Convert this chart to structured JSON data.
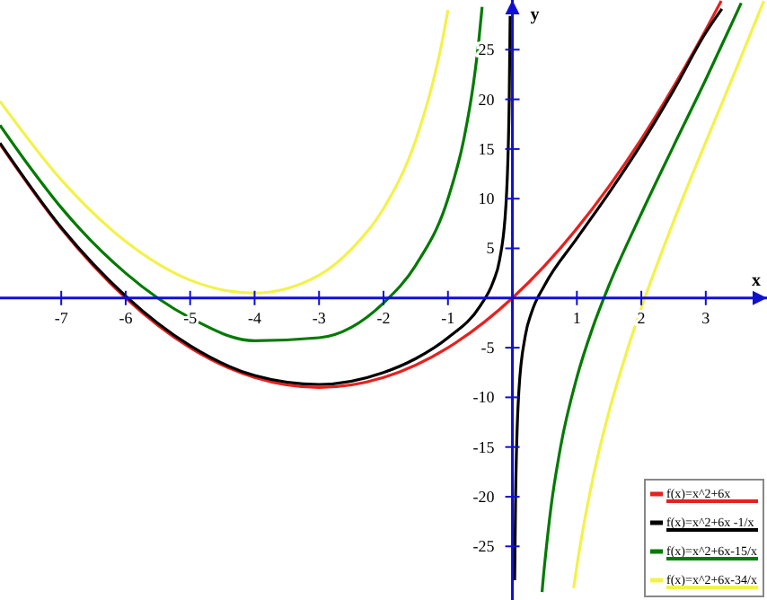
{
  "chart_data": {
    "type": "line",
    "xlabel": "x",
    "ylabel": "y",
    "xlim": [
      -7.95,
      3.95
    ],
    "ylim": [
      -30.4,
      30
    ],
    "xticks": [
      -7,
      -6,
      -5,
      -4,
      -3,
      -2,
      -1,
      1,
      2,
      3
    ],
    "yticks": [
      -25,
      -20,
      -15,
      -10,
      -5,
      5,
      10,
      15,
      20,
      25
    ],
    "grid": false,
    "legend": "bottom right",
    "marker": "none",
    "line_style": "solid",
    "series": [
      {
        "name": "f(x)=x^2+6x",
        "color": "#e8201e",
        "x": [
          -7.95,
          -7,
          -6,
          -5,
          -4,
          -3,
          -2,
          -1,
          0,
          1,
          2,
          3,
          3.24
        ],
        "values": [
          15.5,
          7,
          0,
          -5,
          -8,
          -9,
          -8,
          -5,
          0,
          7,
          16,
          27,
          29.9
        ]
      },
      {
        "name": "f(x)=x^2+6x -1/x",
        "color": "#000000",
        "x": [
          -7.95,
          -7,
          -6,
          -5,
          -4,
          -3,
          -2,
          -1.5,
          -1,
          -0.5,
          -0.3,
          -0.2,
          -0.1,
          -0.05,
          -0.035,
          0,
          0.035,
          0.05,
          0.1,
          0.2,
          0.3,
          0.5,
          1,
          1.5,
          2,
          2.5,
          3,
          3.25
        ],
        "values": [
          15.6,
          7.1,
          0.2,
          -4.8,
          -7.8,
          -8.7,
          -7.5,
          -6.1,
          -4,
          -0.8,
          1.6,
          3.8,
          9.4,
          19.7,
          28.4,
          null,
          -28.4,
          -19.7,
          -9.4,
          -3.8,
          -1.4,
          1.3,
          6,
          10.6,
          15.5,
          20.9,
          26.7,
          29.1
        ]
      },
      {
        "name": "f(x)=x^2+6x-15/x",
        "color": "#007a00",
        "x": [
          -7.95,
          -7.5,
          -7,
          -6,
          -5,
          -4,
          -3,
          -2,
          -1.5,
          -1,
          -0.75,
          -0.6,
          -0.52,
          -0.47,
          0,
          0.46,
          0.48,
          0.5,
          0.6,
          0.75,
          1,
          1.25,
          1.5,
          2,
          2.5,
          3,
          3.5,
          3.55
        ],
        "values": [
          17.4,
          13.3,
          9.1,
          2.5,
          -2,
          -4.3,
          -4,
          -0.5,
          3.3,
          10,
          16.1,
          21.8,
          26,
          29.3,
          null,
          -29.6,
          -28.1,
          -26.8,
          -21,
          -14.9,
          -8,
          -2.9,
          1.3,
          8.5,
          15.3,
          22,
          29,
          29.7
        ]
      },
      {
        "name": "f(x)=x^2+6x-34/x",
        "color": "#f2f24a",
        "x": [
          -7.95,
          -7,
          -6,
          -5,
          -4,
          -3,
          -2.5,
          -2,
          -1.5,
          -1.25,
          -1.1,
          -1,
          0,
          0.95,
          1,
          1.1,
          1.25,
          1.5,
          1.75,
          2,
          2.5,
          3,
          3.5,
          3.9
        ],
        "values": [
          19.8,
          11.9,
          5.7,
          1.8,
          0.5,
          2.3,
          4.9,
          9,
          15.9,
          21.3,
          25.5,
          29,
          null,
          -29.2,
          -27,
          -23.1,
          -18.1,
          -11.4,
          -5.9,
          -1,
          7.7,
          15.7,
          23.5,
          29.9
        ]
      }
    ]
  }
}
